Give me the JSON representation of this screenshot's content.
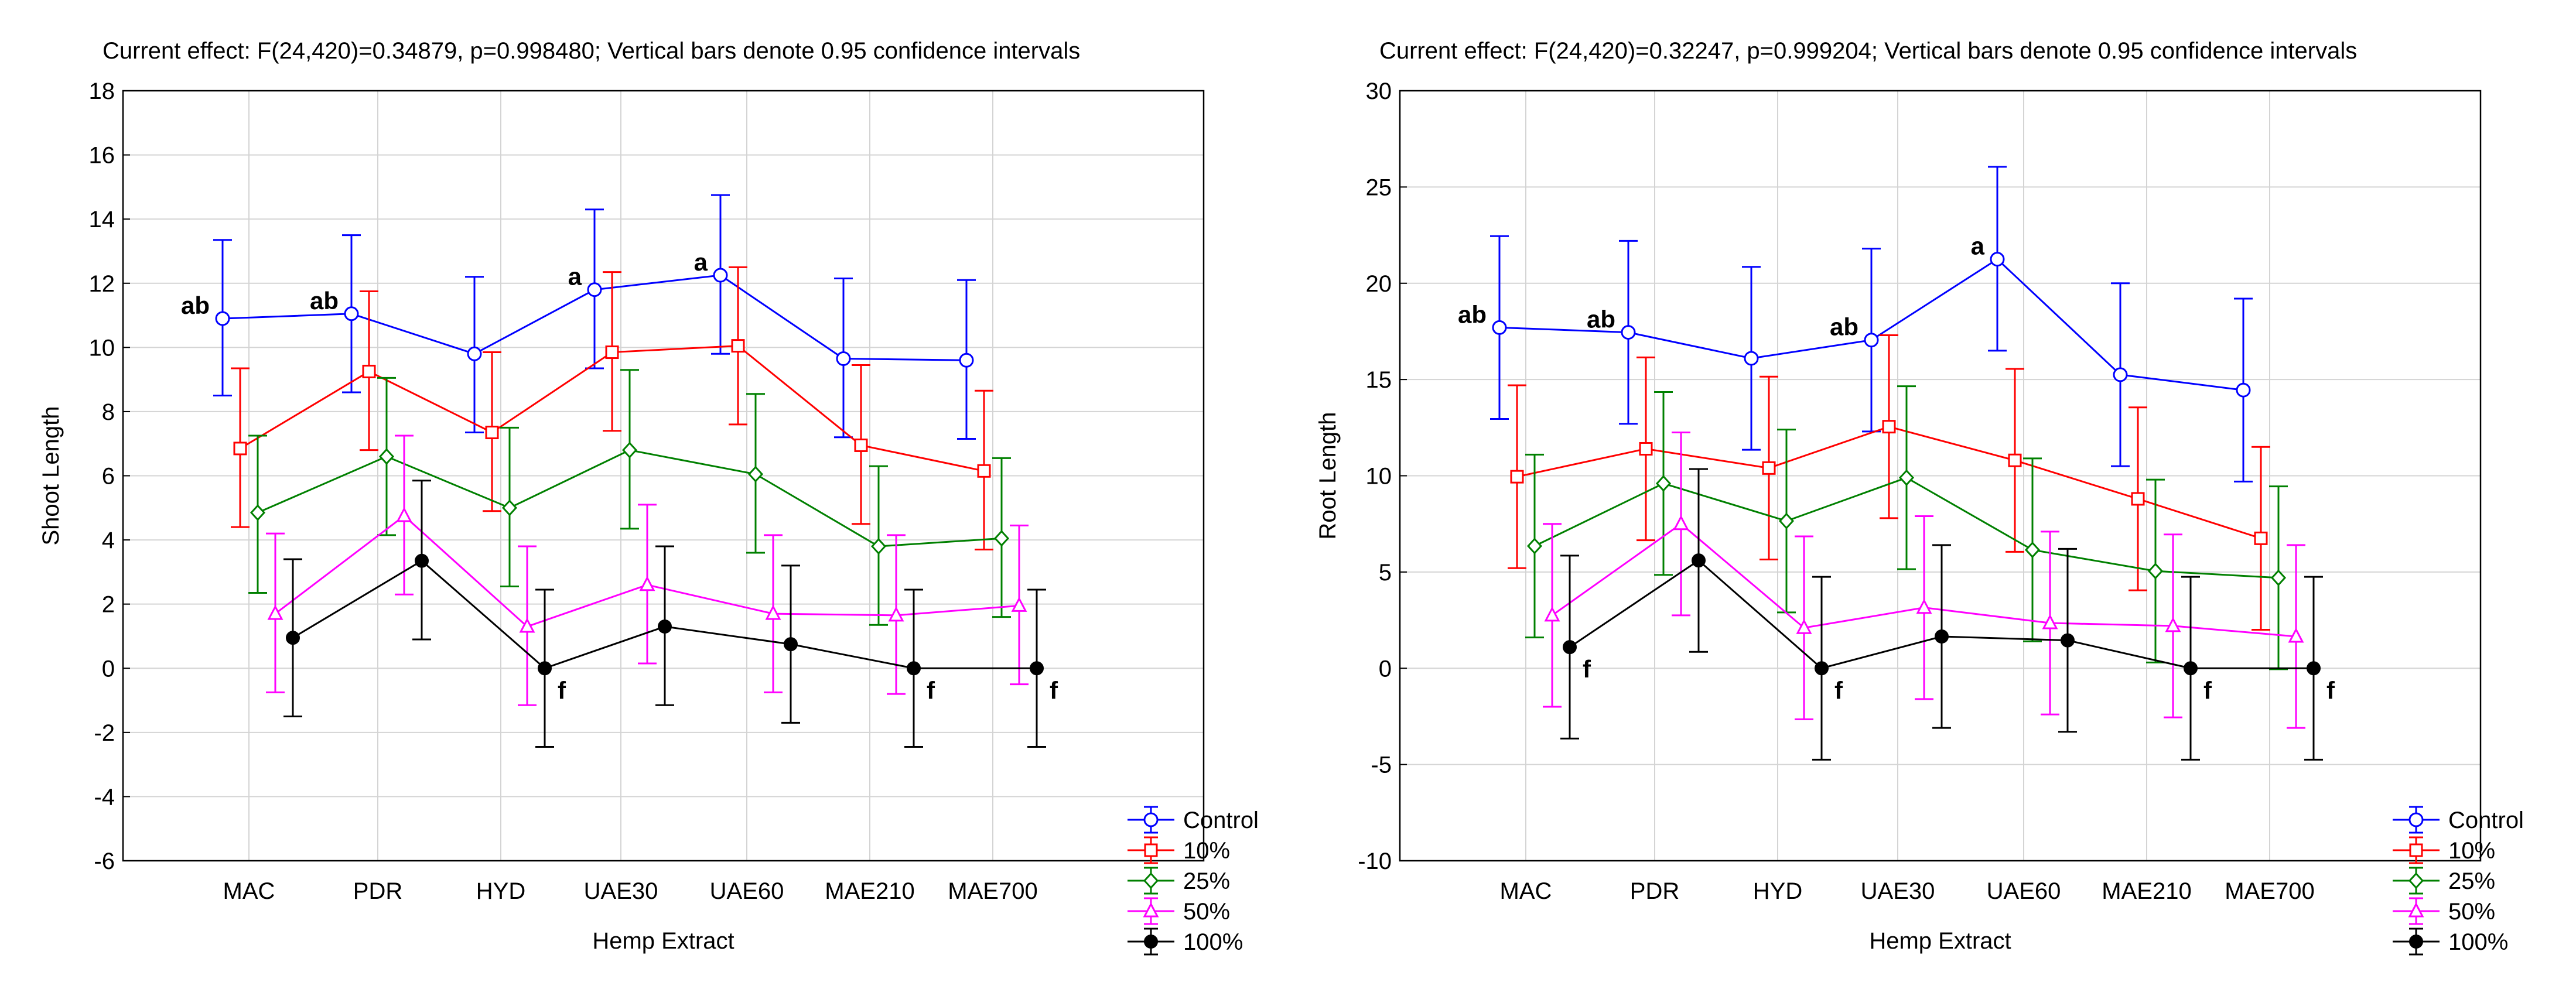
{
  "chart_data": [
    {
      "type": "line",
      "title": "Current effect: F(24,420)=0.34879, p=0.998480; Vertical bars denote 0.95 confidence intervals",
      "xlabel": "Hemp Extract",
      "ylabel": "Shoot Length",
      "ylim": [
        -6,
        18
      ],
      "yticks": [
        -6,
        -4,
        -2,
        0,
        2,
        4,
        6,
        8,
        10,
        12,
        14,
        16,
        18
      ],
      "categories": [
        "MAC",
        "PDR",
        "HYD",
        "UAE30",
        "UAE60",
        "MAE210",
        "MAE700"
      ],
      "grid": true,
      "legend_position": "bottom-right",
      "series": [
        {
          "name": "Control",
          "color": "#0000ff",
          "marker": "circle",
          "values": [
            10.9,
            11.05,
            9.8,
            11.8,
            12.25,
            9.65,
            9.6
          ],
          "ci_low": [
            8.5,
            8.6,
            7.35,
            9.35,
            9.8,
            7.2,
            7.15
          ],
          "ci_high": [
            13.35,
            13.5,
            12.2,
            14.3,
            14.75,
            12.15,
            12.1
          ]
        },
        {
          "name": "10%",
          "color": "#ff0000",
          "marker": "square",
          "values": [
            6.85,
            9.25,
            7.35,
            9.85,
            10.05,
            6.95,
            6.15
          ],
          "ci_low": [
            4.4,
            6.8,
            4.9,
            7.4,
            7.6,
            4.5,
            3.7
          ],
          "ci_high": [
            9.35,
            11.75,
            9.85,
            12.35,
            12.5,
            9.45,
            8.65
          ]
        },
        {
          "name": "25%",
          "color": "#008000",
          "marker": "diamond",
          "values": [
            4.85,
            6.6,
            5.0,
            6.8,
            6.05,
            3.8,
            4.05
          ],
          "ci_low": [
            2.35,
            4.15,
            2.55,
            4.35,
            3.6,
            1.35,
            1.6
          ],
          "ci_high": [
            7.25,
            9.05,
            7.5,
            9.3,
            8.55,
            6.3,
            6.55
          ]
        },
        {
          "name": "50%",
          "color": "#ff00ff",
          "marker": "triangle",
          "values": [
            1.7,
            4.75,
            1.3,
            2.6,
            1.7,
            1.65,
            1.95
          ],
          "ci_low": [
            -0.75,
            2.3,
            -1.15,
            0.15,
            -0.75,
            -0.8,
            -0.5
          ],
          "ci_high": [
            4.2,
            7.25,
            3.8,
            5.1,
            4.15,
            4.15,
            4.45
          ]
        },
        {
          "name": "100%",
          "color": "#000000",
          "marker": "filled-circle",
          "values": [
            0.95,
            3.35,
            0.0,
            1.3,
            0.75,
            0.0,
            0.0
          ],
          "ci_low": [
            -1.5,
            0.9,
            -2.45,
            -1.15,
            -1.7,
            -2.45,
            -2.45
          ],
          "ci_high": [
            3.4,
            5.85,
            2.45,
            3.8,
            3.2,
            2.45,
            2.45
          ]
        }
      ],
      "annotations": [
        {
          "text": "ab",
          "category": "MAC",
          "series": "Control"
        },
        {
          "text": "ab",
          "category": "PDR",
          "series": "Control"
        },
        {
          "text": "a",
          "category": "UAE30",
          "series": "Control"
        },
        {
          "text": "a",
          "category": "UAE60",
          "series": "Control"
        },
        {
          "text": "f",
          "category": "HYD",
          "series": "100%"
        },
        {
          "text": "f",
          "category": "MAE210",
          "series": "100%"
        },
        {
          "text": "f",
          "category": "MAE700",
          "series": "100%"
        }
      ]
    },
    {
      "type": "line",
      "title": "Current effect: F(24,420)=0.32247, p=0.999204; Vertical bars denote 0.95 confidence intervals",
      "xlabel": "Hemp Extract",
      "ylabel": "Root Length",
      "ylim": [
        -10,
        30
      ],
      "yticks": [
        -10,
        -5,
        0,
        5,
        10,
        15,
        20,
        25,
        30
      ],
      "categories": [
        "MAC",
        "PDR",
        "HYD",
        "UAE30",
        "UAE60",
        "MAE210",
        "MAE700"
      ],
      "grid": true,
      "legend_position": "bottom-right",
      "series": [
        {
          "name": "Control",
          "color": "#0000ff",
          "marker": "circle",
          "values": [
            17.7,
            17.45,
            16.1,
            17.05,
            21.25,
            15.25,
            14.45
          ],
          "ci_low": [
            12.95,
            12.7,
            11.35,
            12.3,
            16.5,
            10.5,
            9.7
          ],
          "ci_high": [
            22.45,
            22.2,
            20.85,
            21.8,
            26.05,
            20.0,
            19.2
          ]
        },
        {
          "name": "10%",
          "color": "#ff0000",
          "marker": "square",
          "values": [
            9.95,
            11.4,
            10.4,
            12.55,
            10.8,
            8.8,
            6.75
          ],
          "ci_low": [
            5.2,
            6.65,
            5.65,
            7.8,
            6.05,
            4.05,
            2.0
          ],
          "ci_high": [
            14.7,
            16.15,
            15.15,
            17.3,
            15.55,
            13.55,
            11.5
          ]
        },
        {
          "name": "25%",
          "color": "#008000",
          "marker": "diamond",
          "values": [
            6.35,
            9.6,
            7.65,
            9.9,
            6.15,
            5.05,
            4.7
          ],
          "ci_low": [
            1.6,
            4.85,
            2.9,
            5.15,
            1.4,
            0.3,
            -0.05
          ],
          "ci_high": [
            11.1,
            14.35,
            12.4,
            14.65,
            10.9,
            9.8,
            9.45
          ]
        },
        {
          "name": "50%",
          "color": "#ff00ff",
          "marker": "triangle",
          "values": [
            2.75,
            7.5,
            2.1,
            3.15,
            2.35,
            2.2,
            1.65
          ],
          "ci_low": [
            -2.0,
            2.75,
            -2.65,
            -1.6,
            -2.4,
            -2.55,
            -3.1
          ],
          "ci_high": [
            7.5,
            12.25,
            6.85,
            7.9,
            7.1,
            6.95,
            6.4
          ]
        },
        {
          "name": "100%",
          "color": "#000000",
          "marker": "filled-circle",
          "values": [
            1.1,
            5.6,
            0.0,
            1.65,
            1.45,
            0.0,
            0.0
          ],
          "ci_low": [
            -3.65,
            0.85,
            -4.75,
            -3.1,
            -3.3,
            -4.75,
            -4.75
          ],
          "ci_high": [
            5.85,
            10.35,
            4.75,
            6.4,
            6.2,
            4.75,
            4.75
          ]
        }
      ],
      "annotations": [
        {
          "text": "ab",
          "category": "MAC",
          "series": "Control"
        },
        {
          "text": "ab",
          "category": "PDR",
          "series": "Control"
        },
        {
          "text": "ab",
          "category": "UAE30",
          "series": "Control"
        },
        {
          "text": "a",
          "category": "UAE60",
          "series": "Control"
        },
        {
          "text": "f",
          "category": "MAC",
          "series": "100%"
        },
        {
          "text": "f",
          "category": "HYD",
          "series": "100%"
        },
        {
          "text": "f",
          "category": "MAE210",
          "series": "100%"
        },
        {
          "text": "f",
          "category": "MAE700",
          "series": "100%"
        }
      ]
    }
  ]
}
